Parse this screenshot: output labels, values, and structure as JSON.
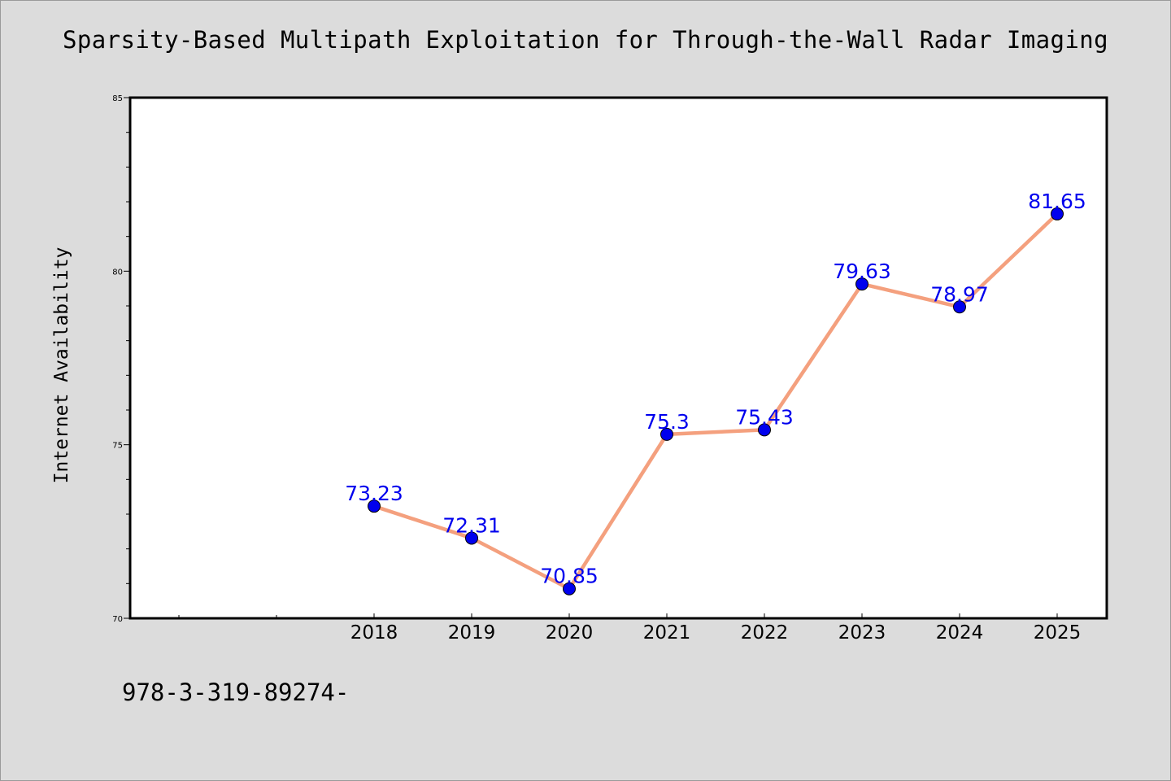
{
  "page": {
    "title": "Sparsity-Based Multipath Exploitation for Through-the-Wall Radar Imaging",
    "footnote": "978-3-319-89274-"
  },
  "colors": {
    "background": "#dcdcdc",
    "plot_area": "#ffffff",
    "line": "#f4a07e",
    "marker": "#0000ee",
    "data_label": "#0000ee"
  },
  "chart_data": {
    "type": "line",
    "title": "Sparsity-Based Multipath Exploitation for Through-the-Wall Radar Imaging",
    "xlabel": "",
    "ylabel": "Internet Availability",
    "categories": [
      "2018",
      "2019",
      "2020",
      "2021",
      "2022",
      "2023",
      "2024",
      "2025"
    ],
    "series": [
      {
        "values": [
          73.23,
          72.31,
          70.85,
          75.3,
          75.43,
          79.63,
          78.97,
          81.65
        ],
        "value_labels": [
          "73.23",
          "72.31",
          "70.85",
          "75.3",
          "75.43",
          "79.63",
          "78.97",
          "81.65"
        ]
      }
    ],
    "ylim": [
      70,
      85
    ],
    "yticks": [
      70,
      75,
      80,
      85
    ],
    "ytick_labels": [
      "70",
      "75",
      "80",
      "85"
    ],
    "y_minor_step": 1,
    "x_leading_empty_slots": 2,
    "grid": false,
    "legend": "none",
    "markers": true
  }
}
